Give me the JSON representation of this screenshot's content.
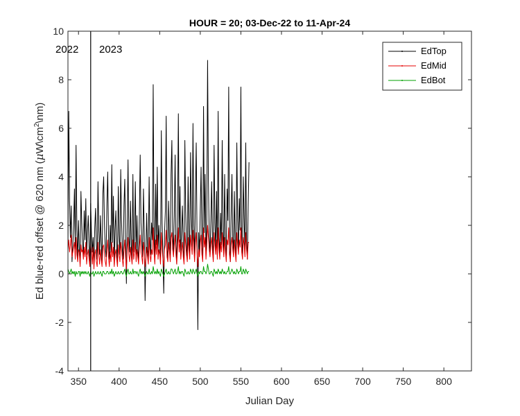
{
  "chart_data": {
    "type": "line",
    "title": "HOUR = 20; 03-Dec-22 to 11-Apr-24",
    "xlabel": "Julian Day",
    "ylabel_prefix": "Ed blue-red offset @ 620 nm (",
    "ylabel_mu": "μ",
    "ylabel_mid": "W\\cm",
    "ylabel_sup": "2",
    "ylabel_suffix": "\\nm)",
    "xlim": [
      337,
      834
    ],
    "ylim": [
      -4,
      10
    ],
    "xticks": [
      350,
      400,
      450,
      500,
      550,
      600,
      650,
      700,
      750,
      800
    ],
    "yticks": [
      -4,
      -2,
      0,
      2,
      4,
      6,
      8,
      10
    ],
    "grid": false,
    "legend_position": "top-right",
    "year_divider_x": 365,
    "year_labels": [
      "2022",
      "2023"
    ],
    "x_start": 337,
    "x_step": 1,
    "series": [
      {
        "name": "EdTop",
        "color": "#000000",
        "values": [
          0.8,
          6.7,
          3.0,
          1.5,
          2.8,
          0.5,
          1.2,
          2.0,
          3.5,
          1.0,
          5.3,
          1.8,
          0.6,
          2.2,
          1.0,
          0.4,
          3.4,
          2.1,
          1.2,
          0.7,
          2.6,
          1.4,
          3.1,
          0.8,
          1.7,
          2.4,
          1.1,
          0.5,
          2.9,
          1.6,
          0.9,
          1.5,
          0.4,
          1.9,
          2.7,
          1.2,
          0.6,
          3.8,
          1.8,
          0.8,
          2.4,
          1.3,
          0.5,
          3.3,
          4.0,
          2.0,
          1.0,
          0.7,
          2.9,
          4.2,
          1.5,
          0.6,
          2.0,
          0.9,
          4.5,
          1.3,
          3.2,
          0.4,
          1.8,
          2.6,
          1.1,
          0.5,
          3.6,
          1.6,
          0.8,
          4.3,
          2.2,
          1.0,
          0.6,
          2.8,
          3.9,
          1.4,
          -0.4,
          2.0,
          4.7,
          1.5,
          0.9,
          3.0,
          1.2,
          0.5,
          4.1,
          0.9,
          1.6,
          3.8,
          0.6,
          2.4,
          1.0,
          0.5,
          2.5,
          4.9,
          2.1,
          1.3,
          0.7,
          3.5,
          1.7,
          -1.1,
          0.8,
          2.5,
          1.0,
          0.6,
          4.0,
          1.5,
          0.8,
          2.1,
          1.4,
          7.8,
          1.6,
          0.5,
          3.7,
          1.2,
          4.4,
          0.9,
          2.0,
          1.2,
          0.5,
          5.9,
          2.1,
          0.8,
          -0.8,
          1.7,
          2.6,
          6.5,
          1.0,
          0.6,
          3.0,
          1.5,
          0.7,
          4.1,
          5.5,
          1.7,
          0.9,
          2.4,
          4.9,
          1.2,
          0.4,
          2.4,
          6.6,
          1.3,
          3.6,
          0.8,
          1.8,
          2.8,
          1.0,
          0.5,
          5.5,
          2.6,
          1.3,
          0.6,
          4.0,
          1.6,
          0.8,
          5.0,
          2.4,
          1.1,
          6.2,
          2.0,
          0.7,
          3.1,
          5.4,
          1.4,
          -2.3,
          1.7,
          0.9,
          2.7,
          4.4,
          1.1,
          0.6,
          6.9,
          1.7,
          4.1,
          0.8,
          2.2,
          8.8,
          3.8,
          1.6,
          0.9,
          2.2,
          3.8,
          1.3,
          0.6,
          5.3,
          2.1,
          1.0,
          3.4,
          0.8,
          6.7,
          1.5,
          0.8,
          2.5,
          1.2,
          5.5,
          1.8,
          0.9,
          4.1,
          1.2,
          0.6,
          3.5,
          2.2,
          7.7,
          1.1,
          0.5,
          2.4,
          4.1,
          1.5,
          0.9,
          3.4,
          1.2,
          0.6,
          5.4,
          2.2,
          1.0,
          3.1,
          1.8,
          7.7,
          1.3,
          0.7,
          4.0,
          2.3,
          0.9,
          5.4,
          1.3,
          0.6,
          2.8,
          4.6
        ]
      },
      {
        "name": "EdMid",
        "color": "#e60000",
        "values": [
          1.0,
          1.4,
          0.9,
          1.2,
          1.6,
          0.7,
          0.9,
          1.1,
          1.3,
          0.6,
          1.5,
          0.8,
          0.5,
          1.0,
          0.9,
          0.3,
          1.2,
          0.9,
          1.0,
          0.6,
          1.1,
          0.7,
          1.3,
          0.4,
          0.8,
          1.0,
          0.6,
          0.3,
          1.2,
          0.9,
          0.4,
          1.1,
          0.2,
          0.8,
          1.0,
          0.5,
          0.3,
          1.3,
          0.8,
          0.4,
          1.0,
          0.6,
          0.3,
          1.1,
          1.2,
          0.8,
          0.5,
          0.3,
          1.0,
          1.4,
          0.7,
          0.3,
          0.9,
          0.5,
          1.3,
          0.7,
          1.1,
          0.3,
          0.8,
          1.0,
          0.6,
          0.3,
          1.2,
          0.8,
          0.5,
          1.3,
          1.0,
          0.6,
          0.3,
          1.0,
          1.4,
          0.7,
          0.2,
          0.9,
          1.5,
          0.8,
          0.5,
          1.1,
          0.7,
          0.4,
          1.4,
          0.6,
          0.9,
          1.3,
          0.5,
          1.0,
          0.7,
          0.4,
          1.1,
          1.6,
          0.9,
          0.7,
          0.4,
          1.3,
          0.9,
          0.3,
          0.6,
          1.1,
          0.7,
          0.4,
          1.5,
          0.8,
          0.5,
          1.0,
          0.8,
          1.9,
          0.9,
          0.4,
          1.4,
          0.8,
          1.6,
          0.6,
          1.0,
          0.8,
          0.4,
          1.7,
          1.0,
          0.6,
          0.3,
          1.0,
          1.2,
          1.8,
          0.7,
          0.5,
          1.3,
          0.9,
          0.5,
          1.5,
          1.7,
          1.0,
          0.7,
          1.2,
          1.6,
          0.8,
          0.4,
          1.1,
          1.9,
          0.9,
          1.4,
          0.6,
          1.0,
          1.3,
          0.7,
          0.4,
          1.7,
          1.2,
          0.8,
          0.5,
          1.5,
          1.0,
          0.6,
          1.6,
          1.2,
          0.8,
          1.8,
          1.1,
          0.5,
          1.3,
          1.7,
          0.9,
          0.3,
          1.0,
          0.7,
          1.3,
          1.6,
          0.8,
          0.5,
          1.9,
          1.1,
          1.5,
          0.6,
          1.2,
          2.0,
          1.5,
          1.0,
          0.7,
          1.2,
          1.5,
          0.9,
          0.5,
          1.7,
          1.2,
          0.8,
          1.4,
          0.6,
          1.9,
          1.0,
          0.6,
          1.3,
          0.9,
          1.7,
          1.1,
          0.7,
          1.5,
          0.9,
          0.5,
          1.4,
          1.2,
          1.9,
          0.8,
          0.5,
          1.2,
          1.5,
          1.0,
          0.7,
          1.4,
          0.9,
          0.5,
          1.7,
          1.2,
          0.8,
          1.4,
          1.1,
          1.9,
          0.9,
          0.6,
          1.5,
          1.2,
          0.7,
          1.7,
          1.0,
          0.6,
          1.3,
          1.3
        ]
      },
      {
        "name": "EdBot",
        "color": "#00a000",
        "values": [
          0.2,
          0.1,
          0.0,
          0.1,
          0.2,
          0.0,
          0.1,
          0.0,
          0.1,
          -0.1,
          0.1,
          0.0,
          0.0,
          0.1,
          0.1,
          -0.1,
          0.1,
          0.0,
          0.1,
          0.0,
          0.1,
          0.0,
          0.1,
          0.0,
          0.0,
          0.1,
          0.0,
          -0.1,
          0.1,
          0.0,
          0.0,
          0.1,
          -0.1,
          0.0,
          0.1,
          0.0,
          0.0,
          0.1,
          0.0,
          0.0,
          0.1,
          0.0,
          -0.1,
          0.1,
          0.1,
          0.0,
          0.0,
          0.0,
          0.1,
          0.1,
          0.0,
          0.0,
          0.1,
          0.0,
          0.2,
          0.0,
          0.1,
          -0.1,
          0.0,
          0.1,
          0.0,
          0.0,
          0.1,
          0.0,
          0.0,
          0.1,
          0.1,
          0.0,
          0.0,
          0.1,
          0.2,
          0.0,
          -0.1,
          0.1,
          0.2,
          0.0,
          0.0,
          0.1,
          0.0,
          0.0,
          0.2,
          0.0,
          0.1,
          0.1,
          0.0,
          0.1,
          0.0,
          -0.1,
          0.1,
          0.2,
          0.0,
          0.1,
          0.0,
          0.1,
          0.0,
          -0.1,
          0.0,
          0.1,
          0.0,
          0.0,
          0.2,
          0.0,
          0.0,
          0.1,
          0.0,
          0.3,
          0.1,
          0.0,
          0.1,
          0.0,
          0.2,
          0.0,
          0.1,
          0.0,
          -0.1,
          0.2,
          0.1,
          0.0,
          -0.1,
          0.0,
          0.1,
          0.2,
          0.0,
          0.0,
          0.1,
          0.0,
          0.0,
          0.2,
          0.2,
          0.1,
          0.0,
          0.1,
          0.2,
          0.0,
          0.0,
          0.1,
          0.3,
          0.0,
          0.1,
          0.0,
          0.1,
          0.1,
          0.0,
          -0.1,
          0.2,
          0.1,
          0.0,
          0.0,
          0.1,
          0.0,
          0.0,
          0.2,
          0.1,
          0.0,
          0.2,
          0.1,
          0.0,
          0.1,
          0.2,
          0.0,
          -0.1,
          0.1,
          0.0,
          0.1,
          0.1,
          0.0,
          0.0,
          0.3,
          0.1,
          0.1,
          0.0,
          0.1,
          0.4,
          0.2,
          0.0,
          0.0,
          0.1,
          0.1,
          0.0,
          -0.1,
          0.2,
          0.1,
          0.0,
          0.1,
          0.0,
          0.2,
          0.1,
          0.0,
          0.1,
          0.0,
          0.2,
          0.1,
          0.0,
          0.1,
          0.0,
          0.0,
          0.1,
          0.1,
          0.3,
          0.0,
          0.0,
          0.1,
          0.2,
          0.1,
          0.0,
          0.1,
          0.0,
          0.0,
          0.2,
          0.1,
          0.0,
          0.1,
          0.1,
          0.3,
          0.0,
          0.0,
          0.2,
          0.1,
          0.0,
          0.2,
          0.1,
          0.0,
          0.1,
          0.1
        ]
      }
    ]
  }
}
